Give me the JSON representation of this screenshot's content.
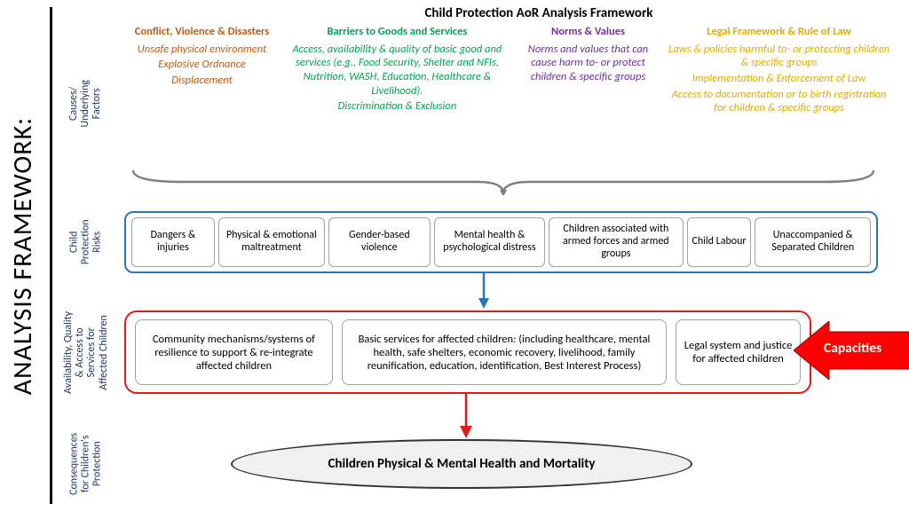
{
  "title_vertical": "ANALYSIS FRAMEWORK:",
  "main_title": "Child Protection AoR Analysis Framework",
  "row_labels": {
    "causes": "Causes/\nUnderlying\nFactors",
    "risks": "Child\nProtection\nRisks",
    "services": "Availability, Quality\n& Access to\nServices for\nAffected Children",
    "consequences": "Consequences\nfor Children's\nProtection"
  },
  "causes": [
    {
      "heading": "Conflict, Violence & Disasters",
      "color": "#c55a11",
      "items": [
        "Unsafe physical environment",
        "Explosive Ordnance",
        "Displacement"
      ],
      "flex": 0.9
    },
    {
      "heading": "Barriers to Goods and Services",
      "color": "#00a650",
      "items": [
        "Access, availability & quality of basic good and services (e.g., Food Security, Shelter and NFIs, Nutrition, WASH, Education, Healthcare & Livelihood).",
        "Discrimination & Exclusion"
      ],
      "flex": 1.3
    },
    {
      "heading": "Norms & Values",
      "color": "#7030a0",
      "items": [
        "Norms and values that can cause harm to- or protect children & specific groups"
      ],
      "flex": 0.85
    },
    {
      "heading": "Legal Framework & Rule of Law",
      "color": "#e2ac00",
      "items": [
        "Laws & policies harmful to- or protecting children & specific groups",
        "Implementation & Enforcement of Law",
        "Access to documentation or to birth registration for children & specific groups"
      ],
      "flex": 1.3
    }
  ],
  "risks": [
    {
      "label": "Dangers & injuries",
      "flex": 0.8
    },
    {
      "label": "Physical & emotional maltreatment",
      "flex": 1.05
    },
    {
      "label": "Gender-based violence",
      "flex": 1.0
    },
    {
      "label": "Mental health & psychological distress",
      "flex": 1.1
    },
    {
      "label": "Children associated with armed forces and armed groups",
      "flex": 1.35
    },
    {
      "label": "Child Labour",
      "flex": 0.6
    },
    {
      "label": "Unaccompanied & Separated Children",
      "flex": 1.15
    }
  ],
  "services": [
    {
      "label": "Community mechanisms/systems of resilience to support & re-integrate affected children",
      "flex": 1
    },
    {
      "label": "Basic services for affected children:\n(including healthcare, mental health, safe shelters, economic recovery, livelihood, family reunification, education, identification, Best Interest Process)",
      "flex": 1.7
    },
    {
      "label": "Legal system and justice for affected children",
      "flex": 0.6
    }
  ],
  "capacities_label": "Capacities",
  "outcome": "Children Physical & Mental Health and Mortality",
  "colors": {
    "risks_border": "#2e75b6",
    "services_border": "#e01b1b",
    "bracket": "#7f7f7f",
    "arrow_blue": "#2e75b6",
    "arrow_red": "#e01b1b",
    "cap_arrow_fill": "#ff0000",
    "cap_arrow_text": "#ffffff",
    "label_color": "#1f3864"
  }
}
